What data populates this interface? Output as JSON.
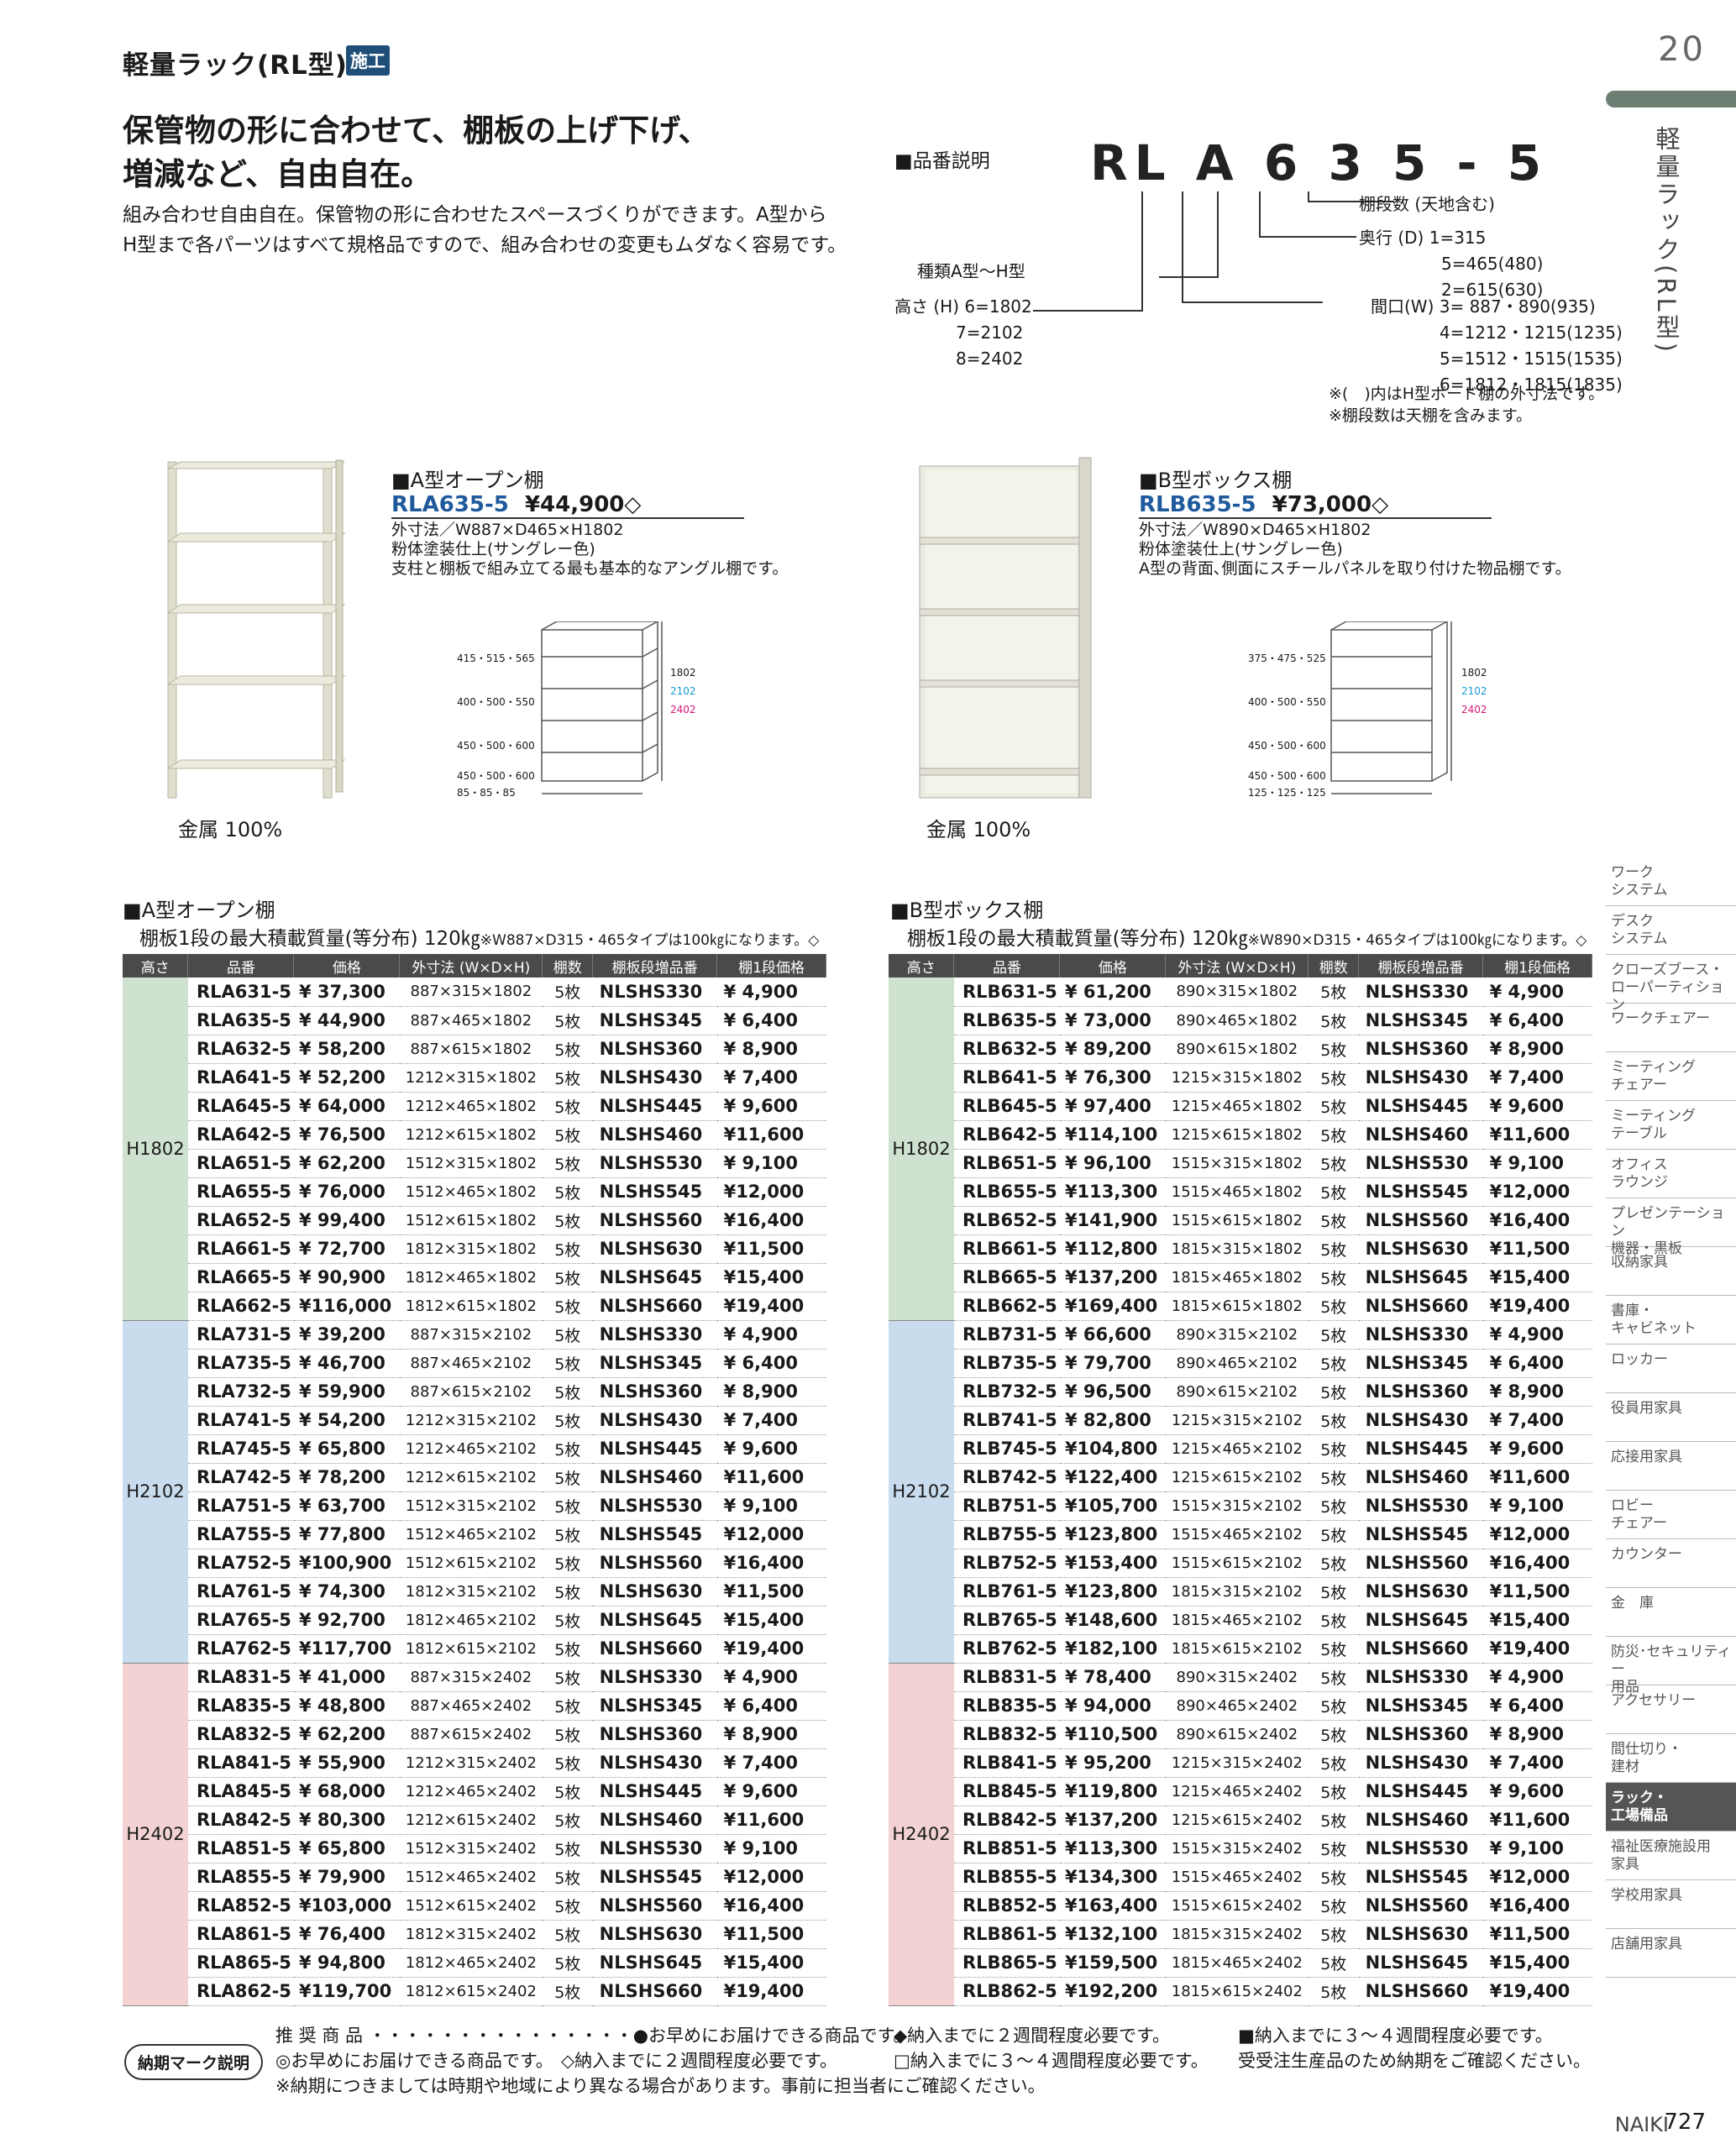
{
  "header": {
    "title": "軽量ラック(RL型)",
    "badge": "施工",
    "page_top": "20"
  },
  "lead": {
    "line1": "保管物の形に合わせて、棚板の上げ下げ、",
    "line2": "増減など、自由自在。"
  },
  "body": {
    "line1": "組み合わせ自由自在。保管物の形に合わせたスペースづくりができます。A型から",
    "line2": "H型まで各パーツはすべて規格品ですので、組み合わせの変更もムダなく容易です。"
  },
  "hinban": {
    "title": "■品番説明",
    "model": "RL A 6 3 5 - 5",
    "dan": "棚段数 (天地含む)",
    "depth_label": "奥行 (D) 1=315",
    "depth2": "5=465(480)",
    "depth3": "2=615(630)",
    "type": "種類A型〜H型",
    "height1": "高さ (H) 6=1802",
    "height2": "7=2102",
    "height3": "8=2402",
    "width1": "間口(W) 3= 887・890(935)",
    "width2": "4=1212・1215(1235)",
    "width3": "5=1512・1515(1535)",
    "width4": "6=1812・1815(1835)",
    "note1": "※(　)内はH型ボード棚の外寸法です。",
    "note2": "※棚段数は天棚を含みます。"
  },
  "prodA": {
    "title": "■A型オープン棚",
    "code": "RLA635-5",
    "price": "¥44,900◇",
    "d1": "外寸法／W887×D465×H1802",
    "d2": "粉体塗装仕上(サングレー色)",
    "d3": "支柱と棚板で組み立てる最も基本的なアングル棚です。",
    "metal": "金属 100%",
    "dims": [
      "415・515・565",
      "400・500・550",
      "450・500・600",
      "450・500・600",
      "85・85・85"
    ],
    "heights": [
      "1802",
      "2102",
      "2402"
    ]
  },
  "prodB": {
    "title": "■B型ボックス棚",
    "code": "RLB635-5",
    "price": "¥73,000◇",
    "d1": "外寸法／W890×D465×H1802",
    "d2": "粉体塗装仕上(サングレー色)",
    "d3": "A型の背面､側面にスチールパネルを取り付けた物品棚です。",
    "metal": "金属 100%",
    "dims": [
      "375・475・525",
      "400・500・550",
      "450・500・600",
      "450・500・600",
      "125・125・125"
    ],
    "heights": [
      "1802",
      "2102",
      "2402"
    ]
  },
  "tableA": {
    "title": "■A型オープン棚",
    "sub": "棚板1段の最大積載質量(等分布) 120㎏",
    "note": "※W887×D315・465タイプは100㎏になります。◇"
  },
  "tableB": {
    "title": "■B型ボックス棚",
    "sub": "棚板1段の最大積載質量(等分布) 120㎏",
    "note": "※W890×D315・465タイプは100㎏になります。◇"
  },
  "columns": [
    "高さ",
    "品番",
    "価格",
    "外寸法 (W×D×H)",
    "棚数",
    "棚板段増品番",
    "棚1段価格"
  ],
  "rowsA": [
    [
      "H1802",
      "RLA631-5",
      "¥ 37,300",
      "887×315×1802",
      "5枚",
      "NLSHS330",
      "¥ 4,900"
    ],
    [
      "H1802",
      "RLA635-5",
      "¥ 44,900",
      "887×465×1802",
      "5枚",
      "NLSHS345",
      "¥ 6,400"
    ],
    [
      "H1802",
      "RLA632-5",
      "¥ 58,200",
      "887×615×1802",
      "5枚",
      "NLSHS360",
      "¥ 8,900"
    ],
    [
      "H1802",
      "RLA641-5",
      "¥ 52,200",
      "1212×315×1802",
      "5枚",
      "NLSHS430",
      "¥ 7,400"
    ],
    [
      "H1802",
      "RLA645-5",
      "¥ 64,000",
      "1212×465×1802",
      "5枚",
      "NLSHS445",
      "¥ 9,600"
    ],
    [
      "H1802",
      "RLA642-5",
      "¥ 76,500",
      "1212×615×1802",
      "5枚",
      "NLSHS460",
      "¥11,600"
    ],
    [
      "H1802",
      "RLA651-5",
      "¥ 62,200",
      "1512×315×1802",
      "5枚",
      "NLSHS530",
      "¥ 9,100"
    ],
    [
      "H1802",
      "RLA655-5",
      "¥ 76,000",
      "1512×465×1802",
      "5枚",
      "NLSHS545",
      "¥12,000"
    ],
    [
      "H1802",
      "RLA652-5",
      "¥ 99,400",
      "1512×615×1802",
      "5枚",
      "NLSHS560",
      "¥16,400"
    ],
    [
      "H1802",
      "RLA661-5",
      "¥ 72,700",
      "1812×315×1802",
      "5枚",
      "NLSHS630",
      "¥11,500"
    ],
    [
      "H1802",
      "RLA665-5",
      "¥ 90,900",
      "1812×465×1802",
      "5枚",
      "NLSHS645",
      "¥15,400"
    ],
    [
      "H1802",
      "RLA662-5",
      "¥116,000",
      "1812×615×1802",
      "5枚",
      "NLSHS660",
      "¥19,400"
    ],
    [
      "H2102",
      "RLA731-5",
      "¥ 39,200",
      "887×315×2102",
      "5枚",
      "NLSHS330",
      "¥ 4,900"
    ],
    [
      "H2102",
      "RLA735-5",
      "¥ 46,700",
      "887×465×2102",
      "5枚",
      "NLSHS345",
      "¥ 6,400"
    ],
    [
      "H2102",
      "RLA732-5",
      "¥ 59,900",
      "887×615×2102",
      "5枚",
      "NLSHS360",
      "¥ 8,900"
    ],
    [
      "H2102",
      "RLA741-5",
      "¥ 54,200",
      "1212×315×2102",
      "5枚",
      "NLSHS430",
      "¥ 7,400"
    ],
    [
      "H2102",
      "RLA745-5",
      "¥ 65,800",
      "1212×465×2102",
      "5枚",
      "NLSHS445",
      "¥ 9,600"
    ],
    [
      "H2102",
      "RLA742-5",
      "¥ 78,200",
      "1212×615×2102",
      "5枚",
      "NLSHS460",
      "¥11,600"
    ],
    [
      "H2102",
      "RLA751-5",
      "¥ 63,700",
      "1512×315×2102",
      "5枚",
      "NLSHS530",
      "¥ 9,100"
    ],
    [
      "H2102",
      "RLA755-5",
      "¥ 77,800",
      "1512×465×2102",
      "5枚",
      "NLSHS545",
      "¥12,000"
    ],
    [
      "H2102",
      "RLA752-5",
      "¥100,900",
      "1512×615×2102",
      "5枚",
      "NLSHS560",
      "¥16,400"
    ],
    [
      "H2102",
      "RLA761-5",
      "¥ 74,300",
      "1812×315×2102",
      "5枚",
      "NLSHS630",
      "¥11,500"
    ],
    [
      "H2102",
      "RLA765-5",
      "¥ 92,700",
      "1812×465×2102",
      "5枚",
      "NLSHS645",
      "¥15,400"
    ],
    [
      "H2102",
      "RLA762-5",
      "¥117,700",
      "1812×615×2102",
      "5枚",
      "NLSHS660",
      "¥19,400"
    ],
    [
      "H2402",
      "RLA831-5",
      "¥ 41,000",
      "887×315×2402",
      "5枚",
      "NLSHS330",
      "¥ 4,900"
    ],
    [
      "H2402",
      "RLA835-5",
      "¥ 48,800",
      "887×465×2402",
      "5枚",
      "NLSHS345",
      "¥ 6,400"
    ],
    [
      "H2402",
      "RLA832-5",
      "¥ 62,200",
      "887×615×2402",
      "5枚",
      "NLSHS360",
      "¥ 8,900"
    ],
    [
      "H2402",
      "RLA841-5",
      "¥ 55,900",
      "1212×315×2402",
      "5枚",
      "NLSHS430",
      "¥ 7,400"
    ],
    [
      "H2402",
      "RLA845-5",
      "¥ 68,000",
      "1212×465×2402",
      "5枚",
      "NLSHS445",
      "¥ 9,600"
    ],
    [
      "H2402",
      "RLA842-5",
      "¥ 80,300",
      "1212×615×2402",
      "5枚",
      "NLSHS460",
      "¥11,600"
    ],
    [
      "H2402",
      "RLA851-5",
      "¥ 65,800",
      "1512×315×2402",
      "5枚",
      "NLSHS530",
      "¥ 9,100"
    ],
    [
      "H2402",
      "RLA855-5",
      "¥ 79,900",
      "1512×465×2402",
      "5枚",
      "NLSHS545",
      "¥12,000"
    ],
    [
      "H2402",
      "RLA852-5",
      "¥103,000",
      "1512×615×2402",
      "5枚",
      "NLSHS560",
      "¥16,400"
    ],
    [
      "H2402",
      "RLA861-5",
      "¥ 76,400",
      "1812×315×2402",
      "5枚",
      "NLSHS630",
      "¥11,500"
    ],
    [
      "H2402",
      "RLA865-5",
      "¥ 94,800",
      "1812×465×2402",
      "5枚",
      "NLSHS645",
      "¥15,400"
    ],
    [
      "H2402",
      "RLA862-5",
      "¥119,700",
      "1812×615×2402",
      "5枚",
      "NLSHS660",
      "¥19,400"
    ]
  ],
  "rowsB": [
    [
      "H1802",
      "RLB631-5",
      "¥ 61,200",
      "890×315×1802",
      "5枚",
      "NLSHS330",
      "¥ 4,900"
    ],
    [
      "H1802",
      "RLB635-5",
      "¥ 73,000",
      "890×465×1802",
      "5枚",
      "NLSHS345",
      "¥ 6,400"
    ],
    [
      "H1802",
      "RLB632-5",
      "¥ 89,200",
      "890×615×1802",
      "5枚",
      "NLSHS360",
      "¥ 8,900"
    ],
    [
      "H1802",
      "RLB641-5",
      "¥ 76,300",
      "1215×315×1802",
      "5枚",
      "NLSHS430",
      "¥ 7,400"
    ],
    [
      "H1802",
      "RLB645-5",
      "¥ 97,400",
      "1215×465×1802",
      "5枚",
      "NLSHS445",
      "¥ 9,600"
    ],
    [
      "H1802",
      "RLB642-5",
      "¥114,100",
      "1215×615×1802",
      "5枚",
      "NLSHS460",
      "¥11,600"
    ],
    [
      "H1802",
      "RLB651-5",
      "¥ 96,100",
      "1515×315×1802",
      "5枚",
      "NLSHS530",
      "¥ 9,100"
    ],
    [
      "H1802",
      "RLB655-5",
      "¥113,300",
      "1515×465×1802",
      "5枚",
      "NLSHS545",
      "¥12,000"
    ],
    [
      "H1802",
      "RLB652-5",
      "¥141,900",
      "1515×615×1802",
      "5枚",
      "NLSHS560",
      "¥16,400"
    ],
    [
      "H1802",
      "RLB661-5",
      "¥112,800",
      "1815×315×1802",
      "5枚",
      "NLSHS630",
      "¥11,500"
    ],
    [
      "H1802",
      "RLB665-5",
      "¥137,200",
      "1815×465×1802",
      "5枚",
      "NLSHS645",
      "¥15,400"
    ],
    [
      "H1802",
      "RLB662-5",
      "¥169,400",
      "1815×615×1802",
      "5枚",
      "NLSHS660",
      "¥19,400"
    ],
    [
      "H2102",
      "RLB731-5",
      "¥ 66,600",
      "890×315×2102",
      "5枚",
      "NLSHS330",
      "¥ 4,900"
    ],
    [
      "H2102",
      "RLB735-5",
      "¥ 79,700",
      "890×465×2102",
      "5枚",
      "NLSHS345",
      "¥ 6,400"
    ],
    [
      "H2102",
      "RLB732-5",
      "¥ 96,500",
      "890×615×2102",
      "5枚",
      "NLSHS360",
      "¥ 8,900"
    ],
    [
      "H2102",
      "RLB741-5",
      "¥ 82,800",
      "1215×315×2102",
      "5枚",
      "NLSHS430",
      "¥ 7,400"
    ],
    [
      "H2102",
      "RLB745-5",
      "¥104,800",
      "1215×465×2102",
      "5枚",
      "NLSHS445",
      "¥ 9,600"
    ],
    [
      "H2102",
      "RLB742-5",
      "¥122,400",
      "1215×615×2102",
      "5枚",
      "NLSHS460",
      "¥11,600"
    ],
    [
      "H2102",
      "RLB751-5",
      "¥105,700",
      "1515×315×2102",
      "5枚",
      "NLSHS530",
      "¥ 9,100"
    ],
    [
      "H2102",
      "RLB755-5",
      "¥123,800",
      "1515×465×2102",
      "5枚",
      "NLSHS545",
      "¥12,000"
    ],
    [
      "H2102",
      "RLB752-5",
      "¥153,400",
      "1515×615×2102",
      "5枚",
      "NLSHS560",
      "¥16,400"
    ],
    [
      "H2102",
      "RLB761-5",
      "¥123,800",
      "1815×315×2102",
      "5枚",
      "NLSHS630",
      "¥11,500"
    ],
    [
      "H2102",
      "RLB765-5",
      "¥148,600",
      "1815×465×2102",
      "5枚",
      "NLSHS645",
      "¥15,400"
    ],
    [
      "H2102",
      "RLB762-5",
      "¥182,100",
      "1815×615×2102",
      "5枚",
      "NLSHS660",
      "¥19,400"
    ],
    [
      "H2402",
      "RLB831-5",
      "¥ 78,400",
      "890×315×2402",
      "5枚",
      "NLSHS330",
      "¥ 4,900"
    ],
    [
      "H2402",
      "RLB835-5",
      "¥ 94,000",
      "890×465×2402",
      "5枚",
      "NLSHS345",
      "¥ 6,400"
    ],
    [
      "H2402",
      "RLB832-5",
      "¥110,500",
      "890×615×2402",
      "5枚",
      "NLSHS360",
      "¥ 8,900"
    ],
    [
      "H2402",
      "RLB841-5",
      "¥ 95,200",
      "1215×315×2402",
      "5枚",
      "NLSHS430",
      "¥ 7,400"
    ],
    [
      "H2402",
      "RLB845-5",
      "¥119,800",
      "1215×465×2402",
      "5枚",
      "NLSHS445",
      "¥ 9,600"
    ],
    [
      "H2402",
      "RLB842-5",
      "¥137,200",
      "1215×615×2402",
      "5枚",
      "NLSHS460",
      "¥11,600"
    ],
    [
      "H2402",
      "RLB851-5",
      "¥113,300",
      "1515×315×2402",
      "5枚",
      "NLSHS530",
      "¥ 9,100"
    ],
    [
      "H2402",
      "RLB855-5",
      "¥134,300",
      "1515×465×2402",
      "5枚",
      "NLSHS545",
      "¥12,000"
    ],
    [
      "H2402",
      "RLB852-5",
      "¥163,400",
      "1515×615×2402",
      "5枚",
      "NLSHS560",
      "¥16,400"
    ],
    [
      "H2402",
      "RLB861-5",
      "¥132,100",
      "1815×315×2402",
      "5枚",
      "NLSHS630",
      "¥11,500"
    ],
    [
      "H2402",
      "RLB865-5",
      "¥159,500",
      "1815×465×2402",
      "5枚",
      "NLSHS645",
      "¥15,400"
    ],
    [
      "H2402",
      "RLB862-5",
      "¥192,200",
      "1815×615×2402",
      "5枚",
      "NLSHS660",
      "¥19,400"
    ]
  ],
  "sidebar": {
    "vertical_title": "軽量ラック(RL型)",
    "items": [
      "ワーク\nシステム",
      "デスク\nシステム",
      "クローズブース・\nローパーティション",
      "ワークチェアー",
      "ミーティング\nチェアー",
      "ミーティング\nテーブル",
      "オフィス\nラウンジ",
      "プレゼンテーション\n機器・黒板",
      "収納家具",
      "書庫・\nキャビネット",
      "ロッカー",
      "役員用家具",
      "応接用家具",
      "ロビー\nチェアー",
      "カウンター",
      "金　庫",
      "防災･セキュリティー\n用品",
      "アクセサリー",
      "間仕切り・\n建材",
      "ラック・\n工場備品",
      "福祉医療施設用\n家具",
      "学校用家具",
      "店舗用家具"
    ],
    "active_index": 19
  },
  "footer": {
    "box": "納期マーク説明",
    "l1a": "推 奨 商 品 ・・・・・・・・・・・・・・・●お早めにお届けできる商品です。",
    "l1b": "◆納入までに２週間程度必要です。",
    "l1c": "■納入までに３〜４週間程度必要です。",
    "l2a": "◎お早めにお届けできる商品です。",
    "l2b": "◇納入までに２週間程度必要です。",
    "l2c": "□納入までに３〜４週間程度必要です。",
    "l2d": "受受注生産品のため納期をご確認ください。",
    "l3": "※納期につきましては時期や地域により異なる場合があります。事前に担当者にご確認ください。",
    "brand": "NAIKI",
    "page": "727"
  }
}
